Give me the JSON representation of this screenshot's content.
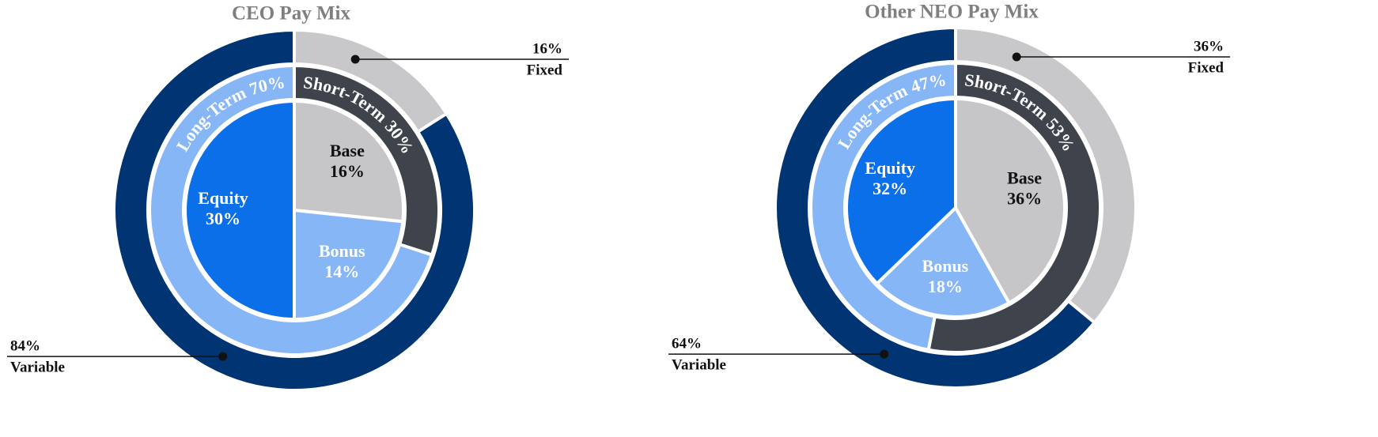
{
  "chart_data": [
    {
      "type": "pie",
      "title": "CEO Pay Mix",
      "rings": [
        {
          "labels": [
            "Base",
            "Bonus",
            "Equity"
          ],
          "values": [
            16,
            14,
            30
          ],
          "value_labels": [
            "16%",
            "14%",
            "30%"
          ],
          "colors": [
            "#c6c6c8",
            "#86b6f6",
            "#0a6fe8"
          ],
          "label_colors": [
            "#111111",
            "#ffffff",
            "#ffffff"
          ]
        },
        {
          "labels": [
            "Short-Term",
            "Long-Term"
          ],
          "values": [
            30,
            70
          ],
          "value_labels": [
            "30%",
            "70%"
          ],
          "colors": [
            "#3f444c",
            "#86b6f6"
          ]
        },
        {
          "labels": [
            "Fixed",
            "Variable"
          ],
          "values": [
            16,
            84
          ],
          "value_labels": [
            "16%",
            "84%"
          ],
          "colors": [
            "#c8c8ca",
            "#003473"
          ]
        }
      ]
    },
    {
      "type": "pie",
      "title": "Other NEO Pay Mix",
      "rings": [
        {
          "labels": [
            "Base",
            "Bonus",
            "Equity"
          ],
          "values": [
            36,
            18,
            32
          ],
          "value_labels": [
            "36%",
            "18%",
            "32%"
          ],
          "colors": [
            "#c6c6c8",
            "#86b6f6",
            "#0a6fe8"
          ],
          "label_colors": [
            "#111111",
            "#ffffff",
            "#ffffff"
          ]
        },
        {
          "labels": [
            "Short-Term",
            "Long-Term"
          ],
          "values": [
            53,
            47
          ],
          "value_labels": [
            "53%",
            "47%"
          ],
          "colors": [
            "#3f444c",
            "#86b6f6"
          ]
        },
        {
          "labels": [
            "Fixed",
            "Variable"
          ],
          "values": [
            36,
            64
          ],
          "value_labels": [
            "36%",
            "64%"
          ],
          "colors": [
            "#c8c8ca",
            "#003473"
          ]
        }
      ]
    }
  ]
}
